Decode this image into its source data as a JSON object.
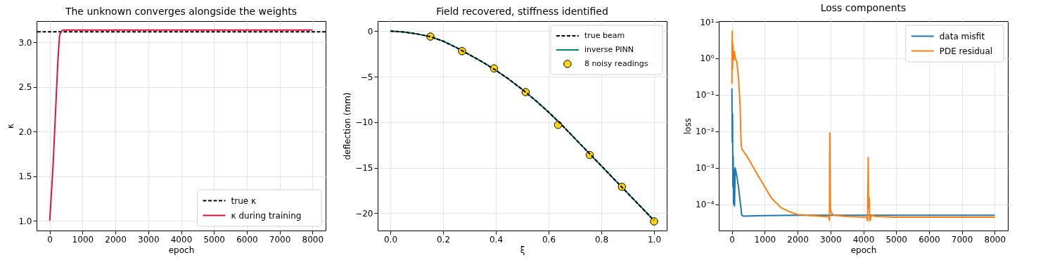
{
  "chart_data": [
    {
      "type": "line",
      "title": "The unknown converges alongside the weights",
      "xlabel": "epoch",
      "ylabel": "κ",
      "x": [
        0,
        50,
        100,
        150,
        200,
        250,
        300,
        350,
        400,
        600,
        8000
      ],
      "series": [
        {
          "name": "κ during training",
          "color": "#dc143c",
          "values": [
            1.0,
            1.3,
            1.6,
            2.0,
            2.4,
            2.8,
            3.08,
            3.12,
            3.14,
            3.14,
            3.14
          ]
        }
      ],
      "ref_lines": [
        {
          "axis": "y",
          "value": 3.12,
          "label": "true κ",
          "color": "#000000",
          "line_style": "dashed"
        }
      ],
      "xlim": [
        -400,
        8400
      ],
      "xticks": [
        0,
        1000,
        2000,
        3000,
        4000,
        5000,
        6000,
        7000,
        8000
      ],
      "ylim": [
        0.89,
        3.24
      ],
      "yticks": [
        {
          "value": 1,
          "label": "1.0"
        },
        {
          "value": 1.5,
          "label": "1.5"
        },
        {
          "value": 2,
          "label": "2.0"
        },
        {
          "value": 2.5,
          "label": "2.5"
        },
        {
          "value": 3,
          "label": "3.0"
        }
      ],
      "grid": true,
      "legend": "bottom right"
    },
    {
      "type": "line",
      "title": "Field recovered, stiffness identified",
      "xlabel": "ξ",
      "ylabel": "deflection (mm)",
      "series": [
        {
          "name": "true beam",
          "type": "line",
          "color": "#000000",
          "line_style": "dashed",
          "x": [
            0,
            0.05,
            0.1,
            0.15,
            0.2,
            0.25,
            0.3,
            0.35,
            0.4,
            0.45,
            0.5,
            0.55,
            0.6,
            0.65,
            0.7,
            0.75,
            0.8,
            0.85,
            0.9,
            0.95,
            1.0
          ],
          "values": [
            0,
            -0.1,
            -0.3,
            -0.6,
            -1.1,
            -1.8,
            -2.6,
            -3.4,
            -4.3,
            -5.3,
            -6.4,
            -7.6,
            -8.9,
            -10.3,
            -11.8,
            -13.3,
            -14.8,
            -16.3,
            -17.8,
            -19.3,
            -20.8
          ]
        },
        {
          "name": "inverse PINN",
          "type": "line",
          "color": "#008080",
          "x": [
            0,
            0.05,
            0.1,
            0.15,
            0.2,
            0.25,
            0.3,
            0.35,
            0.4,
            0.45,
            0.5,
            0.55,
            0.6,
            0.65,
            0.7,
            0.75,
            0.8,
            0.85,
            0.9,
            0.95,
            1.0
          ],
          "values": [
            0,
            -0.1,
            -0.3,
            -0.6,
            -1.1,
            -1.8,
            -2.6,
            -3.4,
            -4.3,
            -5.3,
            -6.4,
            -7.6,
            -8.9,
            -10.3,
            -11.8,
            -13.3,
            -14.8,
            -16.3,
            -17.8,
            -19.3,
            -20.8
          ]
        },
        {
          "name": "8 noisy readings",
          "type": "scatter",
          "color": "#ffd700",
          "marker": "circle",
          "x": [
            0.152,
            0.272,
            0.393,
            0.513,
            0.636,
            0.756,
            0.878,
            1.0
          ],
          "values": [
            -0.6,
            -2.2,
            -4.1,
            -6.7,
            -10.3,
            -13.6,
            -17.1,
            -20.9
          ]
        }
      ],
      "xlim": [
        -0.048,
        1.048
      ],
      "xticks": [
        {
          "value": 0,
          "label": "0.0"
        },
        {
          "value": 0.2,
          "label": "0.2"
        },
        {
          "value": 0.4,
          "label": "0.4"
        },
        {
          "value": 0.6,
          "label": "0.6"
        },
        {
          "value": 0.8,
          "label": "0.8"
        },
        {
          "value": 1,
          "label": "1.0"
        }
      ],
      "ylim": [
        -21.9,
        1.1
      ],
      "yticks": [
        {
          "value": 0,
          "label": "0"
        },
        {
          "value": -5,
          "label": "−5"
        },
        {
          "value": -10,
          "label": "−10"
        },
        {
          "value": -15,
          "label": "−15"
        },
        {
          "value": -20,
          "label": "−20"
        }
      ],
      "grid": true,
      "legend": "top right"
    },
    {
      "type": "line",
      "title": "Loss components",
      "xlabel": "epoch",
      "ylabel": "loss",
      "log": "y",
      "series": [
        {
          "name": "data misfit",
          "color": "#1f77b4",
          "x": [
            0,
            10,
            20,
            30,
            40,
            50,
            60,
            80,
            100,
            150,
            200,
            300,
            350,
            1000,
            2000,
            8000
          ],
          "values": [
            0.15,
            0.005,
            0.03,
            0.0003,
            0.002,
            0.0001,
            0.0009,
            9e-05,
            0.001,
            0.0006,
            0.0003,
            5e-05,
            4.7e-05,
            4.9e-05,
            5e-05,
            5e-05
          ]
        },
        {
          "name": "PDE residual",
          "color": "#ff7f0e",
          "x": [
            0,
            10,
            20,
            30,
            50,
            80,
            100,
            150,
            200,
            250,
            280,
            300,
            500,
            800,
            1000,
            1200,
            1500,
            1800,
            2000,
            2500,
            2950,
            2970,
            2980,
            2990,
            3000,
            3050,
            3100,
            3500,
            4100,
            4130,
            4150,
            4160,
            4180,
            4200,
            4250,
            4400,
            5000,
            8000
          ],
          "values": [
            0.2,
            5.5,
            0.5,
            2.5,
            0.9,
            1.5,
            1.0,
            0.8,
            0.3,
            0.05,
            0.005,
            0.0033,
            0.0018,
            0.0006,
            0.0003,
            0.00015,
            8e-05,
            6e-05,
            5.2e-05,
            4.8e-05,
            4.5e-05,
            3.6e-05,
            0.009,
            0.0003,
            7e-05,
            5.5e-05,
            5e-05,
            4.6e-05,
            4.4e-05,
            3.5e-05,
            0.0019,
            8e-05,
            0.00015,
            3.5e-05,
            5e-05,
            4.6e-05,
            4.4e-05,
            4.4e-05
          ]
        }
      ],
      "xlim": [
        -400,
        8400
      ],
      "xticks": [
        0,
        1000,
        2000,
        3000,
        4000,
        5000,
        6000,
        7000,
        8000
      ],
      "ylim": [
        1.9e-05,
        10.5
      ],
      "yticks": [
        {
          "value": 0.0001,
          "label": "10⁻⁴"
        },
        {
          "value": 0.001,
          "label": "10⁻³"
        },
        {
          "value": 0.01,
          "label": "10⁻²"
        },
        {
          "value": 0.1,
          "label": "10⁻¹"
        },
        {
          "value": 1,
          "label": "10⁰"
        },
        {
          "value": 10,
          "label": "10¹"
        }
      ],
      "grid": true,
      "legend": "top right"
    }
  ]
}
